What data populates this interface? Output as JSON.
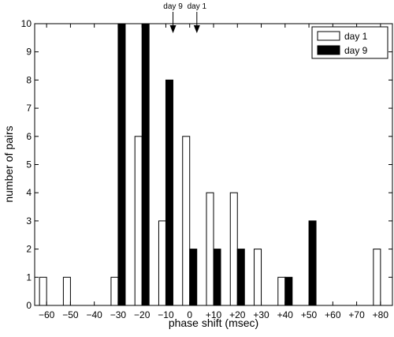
{
  "chart_data": {
    "type": "bar",
    "title": "",
    "xlabel": "phase shift (msec)",
    "ylabel": "number of pairs",
    "categories": [
      "−60",
      "−50",
      "−40",
      "−30",
      "−20",
      "−10",
      "0",
      "+10",
      "+20",
      "+30",
      "+40",
      "+50",
      "+60",
      "+70",
      "+80"
    ],
    "x": [
      -60,
      -50,
      -40,
      -30,
      -20,
      -10,
      0,
      10,
      20,
      30,
      40,
      50,
      60,
      70,
      80
    ],
    "series": [
      {
        "name": "day 1",
        "color": "#ffffff",
        "values": [
          1,
          1,
          0,
          1,
          6,
          3,
          6,
          4,
          4,
          2,
          1,
          0,
          0,
          0,
          2
        ]
      },
      {
        "name": "day 9",
        "color": "#000000",
        "values": [
          0,
          0,
          0,
          10,
          10,
          8,
          2,
          2,
          2,
          0,
          1,
          3,
          0,
          0,
          0
        ]
      }
    ],
    "xlim": [
      -65,
      85
    ],
    "ylim": [
      0,
      10
    ],
    "yticks": [
      0,
      1,
      2,
      3,
      4,
      5,
      6,
      7,
      8,
      9,
      10
    ],
    "grid": false,
    "legend_position": "top-right",
    "annotations": [
      {
        "text": "day 9",
        "x": -7,
        "arrow": "down"
      },
      {
        "text": "day 1",
        "x": 3,
        "arrow": "down"
      }
    ]
  }
}
